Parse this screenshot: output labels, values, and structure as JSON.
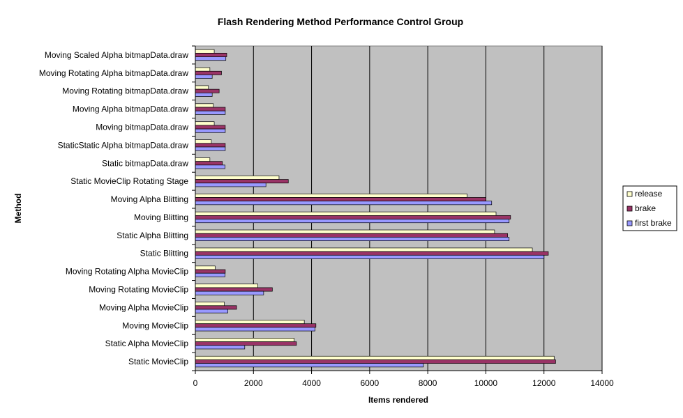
{
  "chart_data": {
    "type": "bar",
    "orientation": "horizontal",
    "title": "Flash Rendering Method Performance Control Group",
    "xlabel": "Items rendered",
    "ylabel": "Method",
    "xlim": [
      0,
      14000
    ],
    "x_ticks": [
      0,
      2000,
      4000,
      6000,
      8000,
      10000,
      12000,
      14000
    ],
    "grid": true,
    "legend_position": "right",
    "plot_background": "#c0c0c0",
    "categories": [
      "Moving Scaled Alpha bitmapData.draw",
      "Moving Rotating Alpha bitmapData.draw",
      "Moving Rotating bitmapData.draw",
      "Moving Alpha bitmapData.draw",
      "Moving bitmapData.draw",
      "StaticStatic Alpha bitmapData.draw",
      "Static bitmapData.draw",
      "Static MovieClip Rotating Stage",
      "Moving Alpha Blitting",
      "Moving Blitting",
      "Static Alpha Blitting",
      "Static Blitting",
      "Moving Rotating Alpha MovieClip",
      "Moving Rotating MovieClip",
      "Moving Alpha MovieClip",
      "Moving MovieClip",
      "Static Alpha MovieClip",
      "Static MovieClip"
    ],
    "series": [
      {
        "name": "release",
        "color": "#ffffcc",
        "values": [
          650,
          500,
          450,
          620,
          650,
          550,
          500,
          2880,
          9350,
          10350,
          10300,
          11600,
          680,
          2150,
          1000,
          3750,
          3400,
          12350
        ]
      },
      {
        "name": "brake",
        "color": "#993366",
        "values": [
          1080,
          900,
          820,
          1030,
          1030,
          1030,
          930,
          3200,
          10000,
          10850,
          10750,
          12150,
          1030,
          2650,
          1420,
          4150,
          3480,
          12400
        ]
      },
      {
        "name": "first brake",
        "color": "#9999ff",
        "values": [
          1050,
          580,
          580,
          1030,
          1030,
          1030,
          1020,
          2430,
          10200,
          10800,
          10800,
          12000,
          1020,
          2350,
          1120,
          4120,
          1700,
          7850
        ]
      }
    ]
  }
}
